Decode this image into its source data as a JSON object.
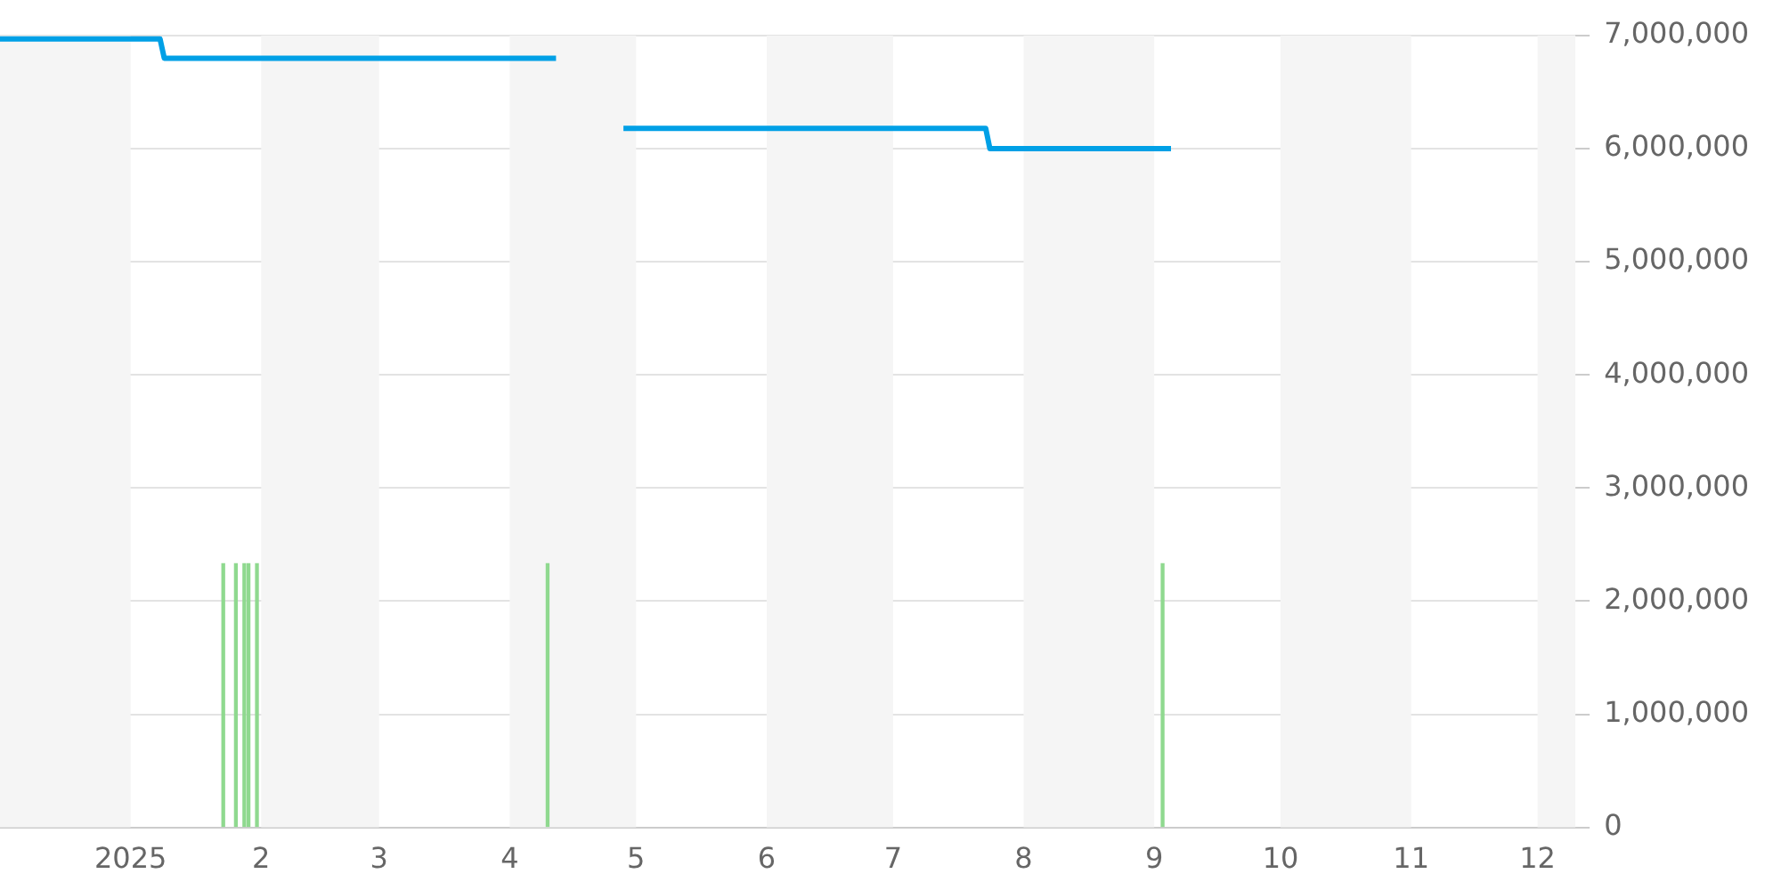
{
  "chart_data": {
    "type": "line",
    "xlim": [
      "2024-12-01",
      "2025-12-10"
    ],
    "xticks": [
      {
        "value": "2025-01-01",
        "label": "2025"
      },
      {
        "value": "2025-02-01",
        "label": "2"
      },
      {
        "value": "2025-03-01",
        "label": "3"
      },
      {
        "value": "2025-04-01",
        "label": "4"
      },
      {
        "value": "2025-05-01",
        "label": "5"
      },
      {
        "value": "2025-06-01",
        "label": "6"
      },
      {
        "value": "2025-07-01",
        "label": "7"
      },
      {
        "value": "2025-08-01",
        "label": "8"
      },
      {
        "value": "2025-09-01",
        "label": "9"
      },
      {
        "value": "2025-10-01",
        "label": "10"
      },
      {
        "value": "2025-11-01",
        "label": "11"
      },
      {
        "value": "2025-12-01",
        "label": "12"
      }
    ],
    "ylim": [
      0,
      7000000
    ],
    "yticks": [
      0,
      {
        "value": 1000000,
        "label": "1,000,000"
      },
      {
        "value": 2000000,
        "label": "2,000,000"
      },
      {
        "value": 3000000,
        "label": "3,000,000"
      },
      {
        "value": 4000000,
        "label": "4,000,000"
      },
      {
        "value": 5000000,
        "label": "5,000,000"
      },
      {
        "value": 6000000,
        "label": "6,000,000"
      },
      {
        "value": 7000000,
        "label": "7,000,000"
      }
    ],
    "grid": "y",
    "bands": [
      {
        "axis": "x",
        "from": "2024-12-01",
        "to": "2025-01-01",
        "color": "#f5f5f5"
      },
      {
        "axis": "x",
        "from": "2025-02-01",
        "to": "2025-03-01",
        "color": "#f5f5f5"
      },
      {
        "axis": "x",
        "from": "2025-04-01",
        "to": "2025-05-01",
        "color": "#f5f5f5"
      },
      {
        "axis": "x",
        "from": "2025-06-01",
        "to": "2025-07-01",
        "color": "#f5f5f5"
      },
      {
        "axis": "x",
        "from": "2025-08-01",
        "to": "2025-09-01",
        "color": "#f5f5f5"
      },
      {
        "axis": "x",
        "from": "2025-10-01",
        "to": "2025-11-01",
        "color": "#f5f5f5"
      },
      {
        "axis": "x",
        "from": "2025-12-01",
        "to": "2025-12-10",
        "color": "#f5f5f5"
      }
    ],
    "series": [
      {
        "type": "bar",
        "color": "#8fd98f",
        "x": [
          "2025-01-23",
          "2025-01-26",
          "2025-01-28",
          "2025-01-29",
          "2025-01-31",
          "2025-04-10",
          "2025-09-03"
        ],
        "values": [
          2330000,
          2330000,
          2330000,
          2330000,
          2330000,
          2330000,
          2330000
        ]
      },
      {
        "color": "#00a0e6",
        "x": [
          "2024-12-01",
          "2025-01-08",
          "2025-01-09",
          "2025-04-12"
        ],
        "values": [
          6970000,
          6970000,
          6800000,
          6800000
        ]
      },
      {
        "color": "#00a0e6",
        "x": [
          "2025-04-28",
          "2025-07-23",
          "2025-07-24",
          "2025-09-05"
        ],
        "values": [
          6180000,
          6180000,
          6000000,
          6000000
        ]
      }
    ]
  }
}
